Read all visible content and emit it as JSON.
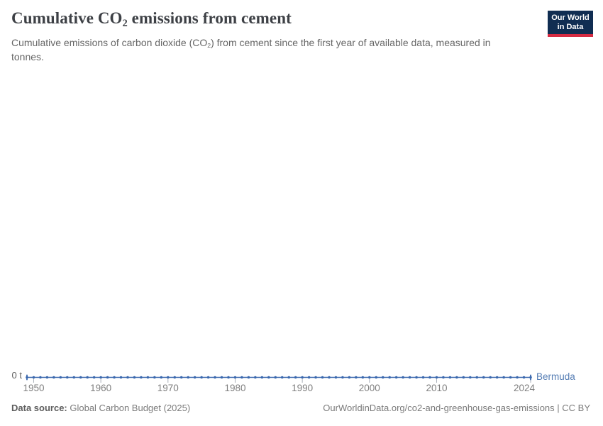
{
  "header": {
    "title_pre": "Cumulative CO",
    "title_sub": "2",
    "title_post": " emissions from cement",
    "subtitle_pre": "Cumulative emissions of carbon dioxide (CO",
    "subtitle_sub": "2",
    "subtitle_post": ") from cement since the first year of available data, measured in tonnes.",
    "logo": {
      "line1": "Our World",
      "line2": "in Data",
      "bg_color": "#102D52",
      "bar_color": "#D52B42"
    }
  },
  "chart_data": {
    "type": "line",
    "title": "Cumulative CO2 emissions from cement",
    "xlabel": "",
    "ylabel": "",
    "x_range": [
      1949,
      2024
    ],
    "x_ticks": [
      1950,
      1960,
      1970,
      1980,
      1990,
      2000,
      2010,
      2024
    ],
    "y_axis_zero_label": "0 t",
    "ylim": [
      0,
      0
    ],
    "grid": false,
    "legend_position": "end-of-line",
    "axis": {
      "tick_color": "#A9AFB8",
      "tick_label_color": "#7e7e7e"
    },
    "series": [
      {
        "name": "Bermuda",
        "color": "#3A68AE",
        "label_color": "#557DB4",
        "years": [
          1949,
          1950,
          1951,
          1952,
          1953,
          1954,
          1955,
          1956,
          1957,
          1958,
          1959,
          1960,
          1961,
          1962,
          1963,
          1964,
          1965,
          1966,
          1967,
          1968,
          1969,
          1970,
          1971,
          1972,
          1973,
          1974,
          1975,
          1976,
          1977,
          1978,
          1979,
          1980,
          1981,
          1982,
          1983,
          1984,
          1985,
          1986,
          1987,
          1988,
          1989,
          1990,
          1991,
          1992,
          1993,
          1994,
          1995,
          1996,
          1997,
          1998,
          1999,
          2000,
          2001,
          2002,
          2003,
          2004,
          2005,
          2006,
          2007,
          2008,
          2009,
          2010,
          2011,
          2012,
          2013,
          2014,
          2015,
          2016,
          2017,
          2018,
          2019,
          2020,
          2021,
          2022,
          2023,
          2024
        ],
        "values": [
          0,
          0,
          0,
          0,
          0,
          0,
          0,
          0,
          0,
          0,
          0,
          0,
          0,
          0,
          0,
          0,
          0,
          0,
          0,
          0,
          0,
          0,
          0,
          0,
          0,
          0,
          0,
          0,
          0,
          0,
          0,
          0,
          0,
          0,
          0,
          0,
          0,
          0,
          0,
          0,
          0,
          0,
          0,
          0,
          0,
          0,
          0,
          0,
          0,
          0,
          0,
          0,
          0,
          0,
          0,
          0,
          0,
          0,
          0,
          0,
          0,
          0,
          0,
          0,
          0,
          0,
          0,
          0,
          0,
          0,
          0,
          0,
          0,
          0,
          0,
          0
        ]
      }
    ]
  },
  "footer": {
    "data_source_label": "Data source:",
    "data_source_value": " Global Carbon Budget (2025)",
    "attribution": "OurWorldinData.org/co2-and-greenhouse-gas-emissions | CC BY"
  }
}
